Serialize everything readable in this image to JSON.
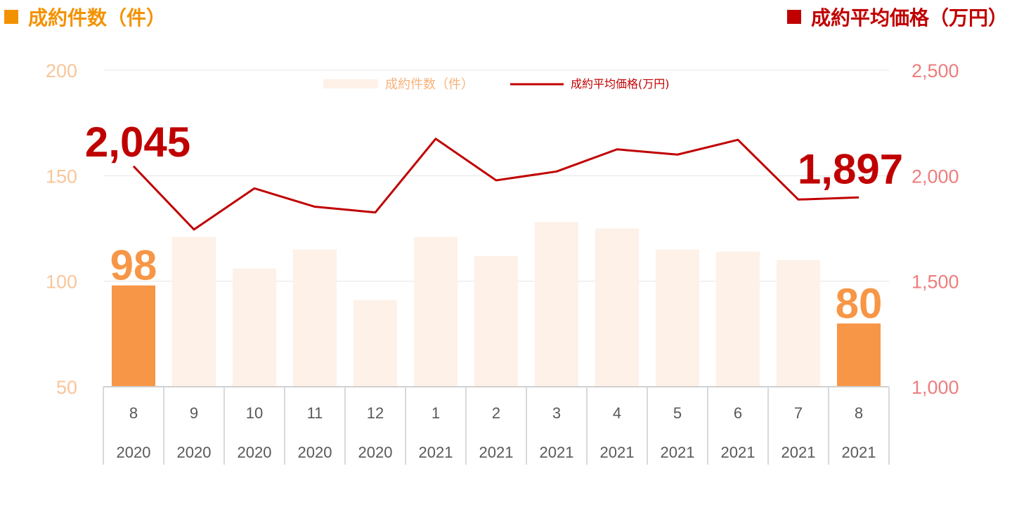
{
  "header": {
    "left_label": "成約件数（件）",
    "right_label": "成約平均価格（万円）",
    "left_color": "#f39200",
    "right_color": "#c00000"
  },
  "chart_data": {
    "type": "bar",
    "categories": [
      {
        "month": "8",
        "year": "2020"
      },
      {
        "month": "9",
        "year": "2020"
      },
      {
        "month": "10",
        "year": "2020"
      },
      {
        "month": "11",
        "year": "2020"
      },
      {
        "month": "12",
        "year": "2020"
      },
      {
        "month": "1",
        "year": "2021"
      },
      {
        "month": "2",
        "year": "2021"
      },
      {
        "month": "3",
        "year": "2021"
      },
      {
        "month": "4",
        "year": "2021"
      },
      {
        "month": "5",
        "year": "2021"
      },
      {
        "month": "6",
        "year": "2021"
      },
      {
        "month": "7",
        "year": "2021"
      },
      {
        "month": "8",
        "year": "2021"
      }
    ],
    "series": [
      {
        "name": "成約件数（件）",
        "type": "bar",
        "axis": "left",
        "values": [
          98,
          121,
          106,
          115,
          91,
          121,
          112,
          128,
          125,
          115,
          114,
          110,
          80
        ],
        "color": "#fdf1e8",
        "highlight_color": "#f79646",
        "highlight_indices": [
          0,
          12
        ]
      },
      {
        "name": "成約平均価格(万円)",
        "type": "line",
        "axis": "right",
        "values": [
          2045,
          1745,
          1940,
          1853,
          1826,
          2175,
          1978,
          2020,
          2125,
          2100,
          2170,
          1887,
          1897
        ],
        "color": "#c00000"
      }
    ],
    "data_labels": [
      {
        "series": 0,
        "index": 0,
        "text": "98"
      },
      {
        "series": 0,
        "index": 12,
        "text": "80"
      },
      {
        "series": 1,
        "index": 0,
        "text": "2,045"
      },
      {
        "series": 1,
        "index": 12,
        "text": "1,897"
      }
    ],
    "y_left": {
      "min": 50,
      "max": 200,
      "ticks": [
        50,
        100,
        150,
        200
      ],
      "tick_labels": [
        "50",
        "100",
        "150",
        "200"
      ]
    },
    "y_right": {
      "min": 1000,
      "max": 2500,
      "ticks": [
        1000,
        1500,
        2000,
        2500
      ],
      "tick_labels": [
        "1,000",
        "1,500",
        "2,000",
        "2,500"
      ]
    },
    "legend_position": "top-center",
    "grid": true
  }
}
